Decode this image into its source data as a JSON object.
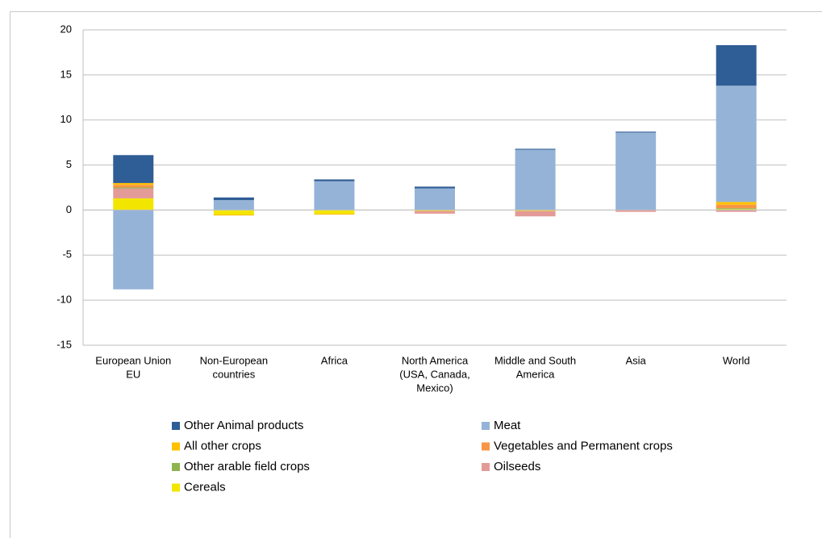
{
  "chart_data": {
    "type": "stacked-bar",
    "categories": [
      [
        "European Union",
        "EU"
      ],
      [
        "Non-European",
        "countries"
      ],
      [
        "Africa"
      ],
      [
        "North America",
        "(USA, Canada,",
        "Mexico)"
      ],
      [
        "Middle and South",
        "America"
      ],
      [
        "Asia"
      ],
      [
        "World"
      ]
    ],
    "series": [
      {
        "name": "Cereals",
        "color": "#f2e600",
        "values": [
          1.3,
          -0.5,
          -0.4,
          -0.1,
          -0.1,
          0,
          0.1
        ]
      },
      {
        "name": "Oilseeds",
        "color": "#e39b98",
        "values": [
          1.1,
          0,
          0,
          -0.3,
          -0.6,
          -0.2,
          -0.2
        ]
      },
      {
        "name": "Other arable field crops",
        "color": "#8fb34f",
        "values": [
          0.1,
          0,
          0,
          0,
          0,
          0,
          0.1
        ]
      },
      {
        "name": "Vegetables and Permanent crops",
        "color": "#f79646",
        "values": [
          0.3,
          0,
          0,
          0,
          0,
          0,
          0.4
        ]
      },
      {
        "name": "All other crops",
        "color": "#ffc000",
        "values": [
          0.2,
          -0.1,
          -0.1,
          0,
          0,
          0,
          0.3
        ]
      },
      {
        "name": "Meat",
        "color": "#95b3d7",
        "values": [
          -8.8,
          1.1,
          3.2,
          2.4,
          6.7,
          8.6,
          12.9
        ]
      },
      {
        "name": "Other Animal products",
        "color": "#2f5d95",
        "values": [
          3.1,
          0.3,
          0.2,
          0.2,
          0.1,
          0.1,
          4.5
        ]
      }
    ],
    "ylim": [
      -15,
      20
    ],
    "yticks": [
      -15,
      -10,
      -5,
      0,
      5,
      10,
      15,
      20
    ],
    "grid": true
  }
}
